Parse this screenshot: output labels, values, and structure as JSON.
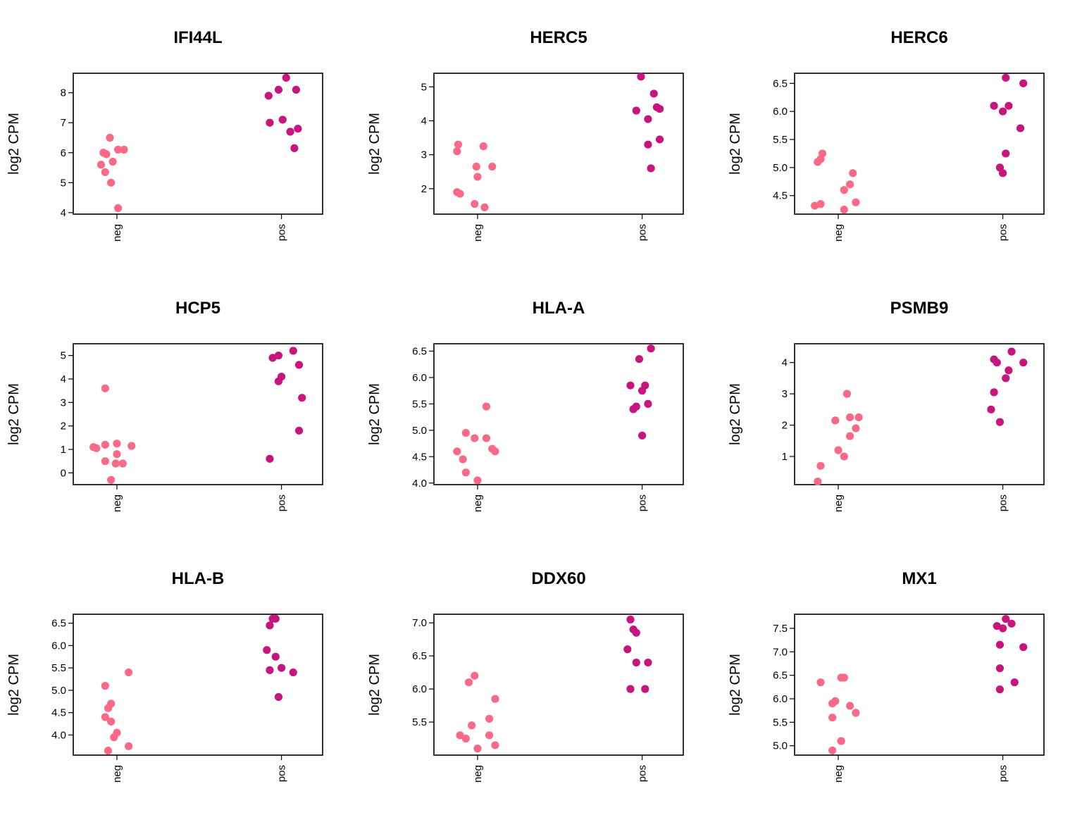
{
  "colors": {
    "neg": "#fa6a86",
    "pos": "#c8147e",
    "axis": "#000000"
  },
  "chart_data": [
    {
      "type": "scatter",
      "title": "IFI44L",
      "ylabel": "log2 CPM",
      "categories": [
        "neg",
        "pos"
      ],
      "ylim": [
        3.95,
        8.65
      ],
      "yticks": [
        4,
        5,
        6,
        7,
        8
      ],
      "ytick_labels": [
        "4",
        "5",
        "6",
        "7",
        "8"
      ],
      "series": [
        {
          "category": "neg",
          "points": [
            [
              -0.27,
              5.6
            ],
            [
              -0.23,
              6.0
            ],
            [
              -0.18,
              5.95
            ],
            [
              -0.12,
              6.5
            ],
            [
              -0.07,
              5.7
            ],
            [
              0.02,
              6.1
            ],
            [
              -0.2,
              5.35
            ],
            [
              -0.1,
              5.0
            ],
            [
              0.12,
              6.1
            ],
            [
              0.02,
              4.15
            ]
          ]
        },
        {
          "category": "pos",
          "points": [
            [
              -0.22,
              7.9
            ],
            [
              -0.05,
              8.1
            ],
            [
              0.08,
              8.5
            ],
            [
              0.25,
              8.1
            ],
            [
              0.02,
              7.1
            ],
            [
              -0.2,
              7.0
            ],
            [
              0.15,
              6.7
            ],
            [
              0.28,
              6.8
            ],
            [
              0.22,
              6.15
            ]
          ]
        }
      ]
    },
    {
      "type": "scatter",
      "title": "HERC5",
      "ylabel": "log2 CPM",
      "categories": [
        "neg",
        "pos"
      ],
      "ylim": [
        1.25,
        5.4
      ],
      "yticks": [
        2,
        3,
        4,
        5
      ],
      "ytick_labels": [
        "2",
        "3",
        "4",
        "5"
      ],
      "series": [
        {
          "category": "neg",
          "points": [
            [
              -0.33,
              3.3
            ],
            [
              -0.35,
              3.1
            ],
            [
              0.1,
              3.25
            ],
            [
              -0.02,
              2.65
            ],
            [
              0.25,
              2.65
            ],
            [
              0.0,
              2.35
            ],
            [
              -0.35,
              1.9
            ],
            [
              -0.3,
              1.85
            ],
            [
              -0.05,
              1.55
            ],
            [
              0.12,
              1.45
            ]
          ]
        },
        {
          "category": "pos",
          "points": [
            [
              -0.02,
              5.3
            ],
            [
              0.2,
              4.8
            ],
            [
              0.25,
              4.4
            ],
            [
              0.3,
              4.35
            ],
            [
              -0.1,
              4.3
            ],
            [
              0.1,
              4.05
            ],
            [
              0.3,
              3.45
            ],
            [
              0.1,
              3.3
            ],
            [
              0.15,
              2.6
            ]
          ]
        }
      ]
    },
    {
      "type": "scatter",
      "title": "HERC6",
      "ylabel": "log2 CPM",
      "categories": [
        "neg",
        "pos"
      ],
      "ylim": [
        4.17,
        6.68
      ],
      "yticks": [
        4.5,
        5.0,
        5.5,
        6.0,
        6.5
      ],
      "ytick_labels": [
        "4.5",
        "5.0",
        "5.5",
        "6.0",
        "6.5"
      ],
      "series": [
        {
          "category": "neg",
          "points": [
            [
              -0.27,
              5.25
            ],
            [
              -0.3,
              5.15
            ],
            [
              -0.35,
              5.1
            ],
            [
              0.25,
              4.9
            ],
            [
              0.2,
              4.7
            ],
            [
              0.1,
              4.6
            ],
            [
              -0.3,
              4.35
            ],
            [
              -0.4,
              4.32
            ],
            [
              0.3,
              4.38
            ],
            [
              0.1,
              4.25
            ]
          ]
        },
        {
          "category": "pos",
          "points": [
            [
              0.05,
              6.6
            ],
            [
              0.35,
              6.5
            ],
            [
              -0.15,
              6.1
            ],
            [
              0.1,
              6.1
            ],
            [
              0.0,
              6.0
            ],
            [
              0.3,
              5.7
            ],
            [
              0.05,
              5.25
            ],
            [
              -0.05,
              5.0
            ],
            [
              0.0,
              4.9
            ]
          ]
        }
      ]
    },
    {
      "type": "scatter",
      "title": "HCP5",
      "ylabel": "log2 CPM",
      "categories": [
        "neg",
        "pos"
      ],
      "ylim": [
        -0.5,
        5.5
      ],
      "yticks": [
        0,
        1,
        2,
        3,
        4,
        5
      ],
      "ytick_labels": [
        "0",
        "1",
        "2",
        "3",
        "4",
        "5"
      ],
      "series": [
        {
          "category": "neg",
          "points": [
            [
              -0.2,
              3.6
            ],
            [
              -0.2,
              1.2
            ],
            [
              0.0,
              1.25
            ],
            [
              0.25,
              1.15
            ],
            [
              -0.4,
              1.1
            ],
            [
              -0.35,
              1.05
            ],
            [
              -0.2,
              0.5
            ],
            [
              0.0,
              0.8
            ],
            [
              -0.02,
              0.4
            ],
            [
              0.1,
              0.4
            ],
            [
              -0.1,
              -0.3
            ]
          ]
        },
        {
          "category": "pos",
          "points": [
            [
              -0.15,
              4.9
            ],
            [
              -0.05,
              5.0
            ],
            [
              0.2,
              5.2
            ],
            [
              0.3,
              4.6
            ],
            [
              0.0,
              4.1
            ],
            [
              -0.05,
              3.9
            ],
            [
              0.35,
              3.2
            ],
            [
              0.3,
              1.8
            ],
            [
              -0.2,
              0.6
            ]
          ]
        }
      ]
    },
    {
      "type": "scatter",
      "title": "HLA-A",
      "ylabel": "log2 CPM",
      "categories": [
        "neg",
        "pos"
      ],
      "ylim": [
        3.97,
        6.64
      ],
      "yticks": [
        4.0,
        4.5,
        5.0,
        5.5,
        6.0,
        6.5
      ],
      "ytick_labels": [
        "4.0",
        "4.5",
        "5.0",
        "5.5",
        "6.0",
        "6.5"
      ],
      "series": [
        {
          "category": "neg",
          "points": [
            [
              0.15,
              5.45
            ],
            [
              -0.2,
              4.95
            ],
            [
              -0.05,
              4.85
            ],
            [
              0.15,
              4.85
            ],
            [
              -0.35,
              4.6
            ],
            [
              0.25,
              4.65
            ],
            [
              0.3,
              4.6
            ],
            [
              -0.25,
              4.45
            ],
            [
              -0.2,
              4.2
            ],
            [
              0.0,
              4.05
            ]
          ]
        },
        {
          "category": "pos",
          "points": [
            [
              0.15,
              6.55
            ],
            [
              -0.05,
              6.35
            ],
            [
              -0.2,
              5.85
            ],
            [
              0.05,
              5.85
            ],
            [
              0.0,
              5.75
            ],
            [
              -0.1,
              5.45
            ],
            [
              -0.15,
              5.4
            ],
            [
              0.1,
              5.5
            ],
            [
              0.0,
              4.9
            ]
          ]
        }
      ]
    },
    {
      "type": "scatter",
      "title": "PSMB9",
      "ylabel": "log2 CPM",
      "categories": [
        "neg",
        "pos"
      ],
      "ylim": [
        0.1,
        4.6
      ],
      "yticks": [
        1,
        2,
        3,
        4
      ],
      "ytick_labels": [
        "1",
        "2",
        "3",
        "4"
      ],
      "series": [
        {
          "category": "neg",
          "points": [
            [
              0.15,
              3.0
            ],
            [
              0.2,
              2.25
            ],
            [
              0.35,
              2.25
            ],
            [
              -0.05,
              2.15
            ],
            [
              0.3,
              1.9
            ],
            [
              0.2,
              1.65
            ],
            [
              0.0,
              1.2
            ],
            [
              -0.3,
              0.7
            ],
            [
              0.1,
              1.0
            ],
            [
              -0.35,
              0.2
            ]
          ]
        },
        {
          "category": "pos",
          "points": [
            [
              -0.15,
              4.1
            ],
            [
              -0.1,
              4.0
            ],
            [
              0.15,
              4.35
            ],
            [
              0.35,
              4.0
            ],
            [
              0.1,
              3.75
            ],
            [
              0.05,
              3.5
            ],
            [
              -0.15,
              3.05
            ],
            [
              -0.2,
              2.5
            ],
            [
              -0.05,
              2.1
            ]
          ]
        }
      ]
    },
    {
      "type": "scatter",
      "title": "HLA-B",
      "ylabel": "log2 CPM",
      "categories": [
        "neg",
        "pos"
      ],
      "ylim": [
        3.55,
        6.7
      ],
      "yticks": [
        4.0,
        4.5,
        5.0,
        5.5,
        6.0,
        6.5
      ],
      "ytick_labels": [
        "4.0",
        "4.5",
        "5.0",
        "5.5",
        "6.0",
        "6.5"
      ],
      "series": [
        {
          "category": "neg",
          "points": [
            [
              0.2,
              5.4
            ],
            [
              -0.2,
              5.1
            ],
            [
              -0.1,
              4.7
            ],
            [
              -0.15,
              4.6
            ],
            [
              -0.2,
              4.4
            ],
            [
              -0.1,
              4.3
            ],
            [
              0.0,
              4.05
            ],
            [
              -0.05,
              3.95
            ],
            [
              0.2,
              3.75
            ],
            [
              -0.15,
              3.65
            ]
          ]
        },
        {
          "category": "pos",
          "points": [
            [
              -0.15,
              6.6
            ],
            [
              -0.1,
              6.6
            ],
            [
              -0.2,
              6.45
            ],
            [
              -0.25,
              5.9
            ],
            [
              -0.1,
              5.75
            ],
            [
              -0.2,
              5.45
            ],
            [
              0.0,
              5.5
            ],
            [
              0.2,
              5.4
            ],
            [
              -0.05,
              4.85
            ]
          ]
        }
      ]
    },
    {
      "type": "scatter",
      "title": "DDX60",
      "ylabel": "log2 CPM",
      "categories": [
        "neg",
        "pos"
      ],
      "ylim": [
        5.0,
        7.13
      ],
      "yticks": [
        5.5,
        6.0,
        6.5,
        7.0
      ],
      "ytick_labels": [
        "5.5",
        "6.0",
        "6.5",
        "7.0"
      ],
      "series": [
        {
          "category": "neg",
          "points": [
            [
              -0.05,
              6.2
            ],
            [
              -0.15,
              6.1
            ],
            [
              0.3,
              5.85
            ],
            [
              0.2,
              5.55
            ],
            [
              -0.1,
              5.45
            ],
            [
              -0.3,
              5.3
            ],
            [
              0.2,
              5.3
            ],
            [
              -0.2,
              5.25
            ],
            [
              0.3,
              5.15
            ],
            [
              0.0,
              5.1
            ]
          ]
        },
        {
          "category": "pos",
          "points": [
            [
              -0.2,
              7.05
            ],
            [
              -0.15,
              6.9
            ],
            [
              -0.1,
              6.85
            ],
            [
              -0.25,
              6.6
            ],
            [
              -0.1,
              6.4
            ],
            [
              0.1,
              6.4
            ],
            [
              -0.2,
              6.0
            ],
            [
              0.05,
              6.0
            ]
          ]
        }
      ]
    },
    {
      "type": "scatter",
      "title": "MX1",
      "ylabel": "log2 CPM",
      "categories": [
        "neg",
        "pos"
      ],
      "ylim": [
        4.8,
        7.8
      ],
      "yticks": [
        5.0,
        5.5,
        6.0,
        6.5,
        7.0,
        7.5
      ],
      "ytick_labels": [
        "5.0",
        "5.5",
        "6.0",
        "6.5",
        "7.0",
        "7.5"
      ],
      "series": [
        {
          "category": "neg",
          "points": [
            [
              -0.3,
              6.35
            ],
            [
              0.05,
              6.45
            ],
            [
              0.1,
              6.45
            ],
            [
              -0.05,
              5.95
            ],
            [
              -0.1,
              5.9
            ],
            [
              0.2,
              5.85
            ],
            [
              0.3,
              5.7
            ],
            [
              -0.1,
              5.6
            ],
            [
              0.05,
              5.1
            ],
            [
              -0.1,
              4.9
            ]
          ]
        },
        {
          "category": "pos",
          "points": [
            [
              -0.1,
              7.55
            ],
            [
              0.0,
              7.5
            ],
            [
              0.05,
              7.7
            ],
            [
              0.15,
              7.6
            ],
            [
              -0.05,
              7.15
            ],
            [
              0.35,
              7.1
            ],
            [
              -0.05,
              6.65
            ],
            [
              0.2,
              6.35
            ],
            [
              -0.05,
              6.2
            ]
          ]
        }
      ]
    }
  ]
}
